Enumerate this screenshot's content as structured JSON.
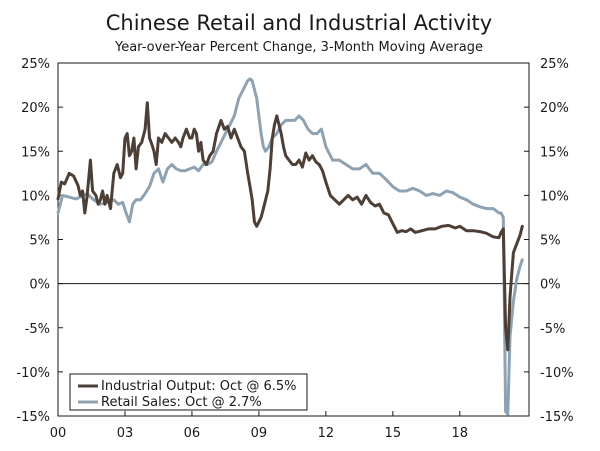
{
  "chart_data": {
    "type": "line",
    "title": "Chinese Retail and Industrial Activity",
    "subtitle": "Year-over-Year Percent Change, 3-Month Moving Average",
    "ylim": [
      -15,
      25
    ],
    "yticks": [
      25,
      20,
      15,
      10,
      5,
      0,
      -5,
      -10,
      -15
    ],
    "ytick_labels": [
      "25%",
      "20%",
      "15%",
      "10%",
      "5%",
      "0%",
      "-5%",
      "-10%",
      "-15%"
    ],
    "xlim": [
      2000,
      2021.1
    ],
    "xticks": [
      2000,
      2003,
      2006,
      2009,
      2012,
      2015,
      2018
    ],
    "xtick_labels": [
      "00",
      "03",
      "06",
      "09",
      "12",
      "15",
      "18"
    ],
    "colors": {
      "industrial": "#4d3f36",
      "retail": "#8da3b3",
      "axis": "#1a1a1a"
    },
    "series": [
      {
        "name": "Industrial Output",
        "legend": "Industrial Output: Oct @ 6.5%",
        "color": "#4d3f36",
        "x": [
          2000.0,
          2000.15,
          2000.3,
          2000.5,
          2000.7,
          2000.9,
          2001.0,
          2001.1,
          2001.2,
          2001.3,
          2001.45,
          2001.55,
          2001.7,
          2001.8,
          2001.9,
          2002.0,
          2002.1,
          2002.2,
          2002.35,
          2002.5,
          2002.65,
          2002.8,
          2002.9,
          2003.0,
          2003.1,
          2003.2,
          2003.3,
          2003.4,
          2003.5,
          2003.6,
          2003.75,
          2003.9,
          2004.0,
          2004.1,
          2004.2,
          2004.3,
          2004.4,
          2004.5,
          2004.65,
          2004.8,
          2004.95,
          2005.1,
          2005.25,
          2005.4,
          2005.5,
          2005.6,
          2005.75,
          2005.9,
          2006.0,
          2006.1,
          2006.2,
          2006.3,
          2006.4,
          2006.5,
          2006.65,
          2006.8,
          2006.95,
          2007.1,
          2007.3,
          2007.45,
          2007.6,
          2007.75,
          2007.9,
          2008.05,
          2008.2,
          2008.35,
          2008.5,
          2008.6,
          2008.7,
          2008.8,
          2008.9,
          2009.0,
          2009.1,
          2009.2,
          2009.3,
          2009.4,
          2009.5,
          2009.6,
          2009.7,
          2009.8,
          2009.9,
          2010.0,
          2010.1,
          2010.2,
          2010.35,
          2010.5,
          2010.65,
          2010.8,
          2010.95,
          2011.1,
          2011.25,
          2011.4,
          2011.55,
          2011.7,
          2011.85,
          2012.0,
          2012.2,
          2012.4,
          2012.6,
          2012.8,
          2013.0,
          2013.2,
          2013.4,
          2013.6,
          2013.8,
          2014.0,
          2014.2,
          2014.4,
          2014.6,
          2014.8,
          2015.0,
          2015.2,
          2015.4,
          2015.6,
          2015.8,
          2016.0,
          2016.3,
          2016.6,
          2016.9,
          2017.2,
          2017.5,
          2017.8,
          2018.0,
          2018.3,
          2018.6,
          2018.9,
          2019.2,
          2019.5,
          2019.75,
          2019.85,
          2019.95,
          2020.05,
          2020.15,
          2020.25,
          2020.4,
          2020.55,
          2020.7,
          2020.8
        ],
        "values": [
          9.6,
          11.5,
          11.3,
          12.5,
          12.2,
          11.1,
          10.0,
          10.5,
          8.0,
          9.8,
          14.0,
          10.5,
          10.0,
          9.0,
          9.5,
          10.5,
          9.0,
          10.0,
          8.5,
          12.5,
          13.5,
          12.0,
          12.5,
          16.5,
          17.0,
          14.5,
          15.0,
          16.5,
          13.0,
          15.5,
          16.0,
          17.5,
          20.5,
          16.5,
          15.8,
          15.0,
          13.5,
          16.5,
          16.0,
          17.0,
          16.5,
          16.0,
          16.5,
          16.0,
          15.5,
          16.5,
          17.5,
          16.5,
          16.5,
          17.5,
          17.0,
          15.0,
          16.0,
          14.0,
          13.5,
          14.5,
          15.0,
          17.0,
          18.5,
          17.5,
          17.8,
          16.5,
          17.5,
          16.5,
          15.5,
          15.0,
          12.5,
          11.0,
          9.5,
          7.0,
          6.5,
          7.0,
          7.5,
          8.5,
          9.5,
          10.5,
          13.0,
          16.5,
          18.0,
          19.0,
          18.0,
          17.0,
          15.5,
          14.5,
          14.0,
          13.5,
          13.5,
          14.0,
          13.2,
          14.8,
          14.0,
          14.5,
          13.8,
          13.5,
          12.8,
          11.5,
          10.0,
          9.5,
          9.0,
          9.5,
          10.0,
          9.5,
          9.8,
          9.0,
          10.0,
          9.2,
          8.8,
          9.0,
          8.0,
          7.8,
          6.8,
          5.8,
          6.0,
          5.9,
          6.2,
          5.8,
          6.0,
          6.2,
          6.2,
          6.5,
          6.6,
          6.3,
          6.5,
          6.0,
          6.0,
          5.9,
          5.7,
          5.3,
          5.2,
          5.8,
          6.2,
          -5.0,
          -7.5,
          -1.5,
          3.5,
          4.5,
          5.5,
          6.5
        ]
      },
      {
        "name": "Retail Sales",
        "legend": "Retail Sales: Oct @ 2.7%",
        "color": "#8da3b3",
        "x": [
          2000.0,
          2000.2,
          2000.5,
          2000.8,
          2001.0,
          2001.3,
          2001.6,
          2001.9,
          2002.2,
          2002.5,
          2002.7,
          2002.9,
          2003.05,
          2003.2,
          2003.35,
          2003.5,
          2003.7,
          2003.9,
          2004.1,
          2004.3,
          2004.5,
          2004.7,
          2004.9,
          2005.1,
          2005.3,
          2005.5,
          2005.7,
          2005.9,
          2006.1,
          2006.3,
          2006.5,
          2006.7,
          2006.9,
          2007.1,
          2007.3,
          2007.5,
          2007.7,
          2007.9,
          2008.1,
          2008.3,
          2008.5,
          2008.6,
          2008.7,
          2008.8,
          2008.9,
          2009.0,
          2009.1,
          2009.2,
          2009.3,
          2009.45,
          2009.6,
          2009.8,
          2010.0,
          2010.2,
          2010.4,
          2010.6,
          2010.8,
          2011.0,
          2011.2,
          2011.4,
          2011.6,
          2011.8,
          2012.0,
          2012.3,
          2012.6,
          2012.9,
          2013.2,
          2013.5,
          2013.8,
          2014.1,
          2014.4,
          2014.7,
          2015.0,
          2015.3,
          2015.6,
          2015.9,
          2016.2,
          2016.5,
          2016.8,
          2017.1,
          2017.4,
          2017.7,
          2018.0,
          2018.3,
          2018.6,
          2018.9,
          2019.2,
          2019.5,
          2019.75,
          2019.85,
          2019.95,
          2020.05,
          2020.15,
          2020.25,
          2020.4,
          2020.55,
          2020.7,
          2020.8
        ],
        "values": [
          8.0,
          10.0,
          9.8,
          9.6,
          9.8,
          10.2,
          9.5,
          9.0,
          9.2,
          9.5,
          9.0,
          9.2,
          8.0,
          7.0,
          9.0,
          9.5,
          9.5,
          10.2,
          11.0,
          12.5,
          13.0,
          11.5,
          13.0,
          13.5,
          13.0,
          12.8,
          12.8,
          13.0,
          13.2,
          12.8,
          13.5,
          13.5,
          13.8,
          15.0,
          16.0,
          17.0,
          18.0,
          19.0,
          21.0,
          22.0,
          23.0,
          23.2,
          23.0,
          22.0,
          21.0,
          19.0,
          17.0,
          15.5,
          15.0,
          15.5,
          16.5,
          17.0,
          18.0,
          18.5,
          18.5,
          18.5,
          19.0,
          18.5,
          17.5,
          17.0,
          17.0,
          17.5,
          15.5,
          14.0,
          14.0,
          13.5,
          13.0,
          13.0,
          13.5,
          12.5,
          12.5,
          11.8,
          11.0,
          10.5,
          10.5,
          10.8,
          10.5,
          10.0,
          10.2,
          10.0,
          10.5,
          10.3,
          9.8,
          9.5,
          9.0,
          8.7,
          8.5,
          8.5,
          8.0,
          8.0,
          7.5,
          -14.5,
          -14.8,
          -6.0,
          -2.0,
          0.5,
          2.0,
          2.7
        ]
      }
    ]
  }
}
